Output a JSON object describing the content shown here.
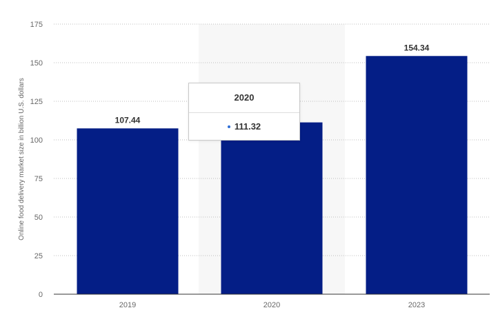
{
  "chart_data": {
    "type": "bar",
    "categories": [
      "2019",
      "2020",
      "2023"
    ],
    "values": [
      107.44,
      111.32,
      154.34
    ],
    "value_labels": [
      "107.44",
      "",
      "154.34"
    ],
    "ylabel": "Online food delivery market size in billion U.S. dollars",
    "ylim": [
      0,
      175
    ],
    "yticks": [
      0,
      25,
      50,
      75,
      100,
      125,
      150,
      175
    ],
    "grid": true,
    "bar_color": "#041e86",
    "highlight_color": "#f7f7f7",
    "highlighted_category": "2020"
  },
  "tooltip": {
    "title": "2020",
    "value": "111.32",
    "dot_color": "#2f6fd6"
  }
}
